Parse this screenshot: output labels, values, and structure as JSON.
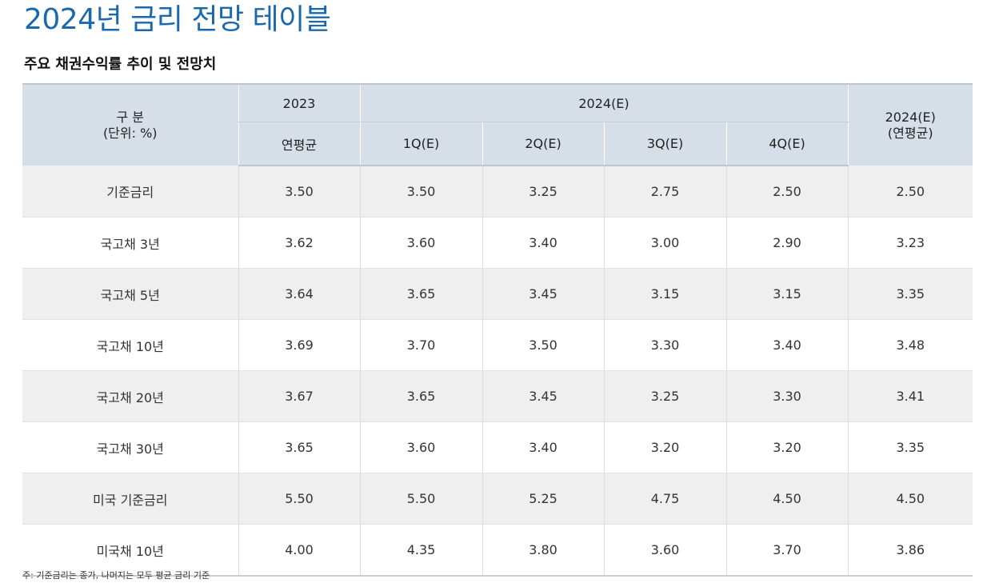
{
  "title": "2024년 금리 전망 테이블",
  "subtitle": "주요 채권수익률 추이 및 전망치",
  "header": {
    "category_line1": "구 분",
    "category_line2": "(단위: %)",
    "year_2023": "2023",
    "year_2024": "2024(E)",
    "annual_2024_line1": "2024(E)",
    "annual_2024_line2": "(연평균)",
    "sub_2023": "연평균",
    "q1": "1Q(E)",
    "q2": "2Q(E)",
    "q3": "3Q(E)",
    "q4": "4Q(E)"
  },
  "rows": [
    {
      "label": "기준금리",
      "y2023": "3.50",
      "q1": "3.50",
      "q2": "3.25",
      "q3": "2.75",
      "q4": "2.50",
      "annual": "2.50"
    },
    {
      "label": "국고채 3년",
      "y2023": "3.62",
      "q1": "3.60",
      "q2": "3.40",
      "q3": "3.00",
      "q4": "2.90",
      "annual": "3.23"
    },
    {
      "label": "국고채 5년",
      "y2023": "3.64",
      "q1": "3.65",
      "q2": "3.45",
      "q3": "3.15",
      "q4": "3.15",
      "annual": "3.35"
    },
    {
      "label": "국고채 10년",
      "y2023": "3.69",
      "q1": "3.70",
      "q2": "3.50",
      "q3": "3.30",
      "q4": "3.40",
      "annual": "3.48"
    },
    {
      "label": "국고채 20년",
      "y2023": "3.67",
      "q1": "3.65",
      "q2": "3.45",
      "q3": "3.25",
      "q4": "3.30",
      "annual": "3.41"
    },
    {
      "label": "국고채 30년",
      "y2023": "3.65",
      "q1": "3.60",
      "q2": "3.40",
      "q3": "3.20",
      "q4": "3.20",
      "annual": "3.35"
    },
    {
      "label": "미국 기준금리",
      "y2023": "5.50",
      "q1": "5.50",
      "q2": "5.25",
      "q3": "4.75",
      "q4": "4.50",
      "annual": "4.50"
    },
    {
      "label": "미국채 10년",
      "y2023": "4.00",
      "q1": "4.35",
      "q2": "3.80",
      "q3": "3.60",
      "q4": "3.70",
      "annual": "3.86"
    }
  ],
  "footnote": "주: 기준금리는 종가, 나머지는 모두 평균 금리 기준",
  "colors": {
    "title": "#1a68ad",
    "header_bg": "#d6dfe8",
    "row_alt_bg": "#efefef"
  }
}
